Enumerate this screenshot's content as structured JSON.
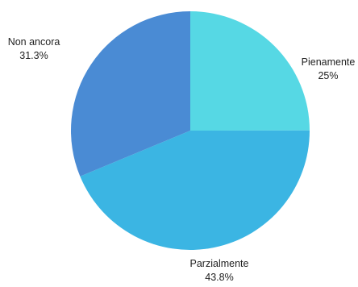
{
  "chart_data": {
    "type": "pie",
    "slices": [
      {
        "label": "Pienamente",
        "value": 25,
        "display": "25%",
        "color": "#56d8e4"
      },
      {
        "label": "Parzialmente",
        "value": 43.8,
        "display": "43.8%",
        "color": "#3bb5e3"
      },
      {
        "label": "Non ancora",
        "value": 31.3,
        "display": "31.3%",
        "color": "#4a8bd4"
      }
    ],
    "start": "12 o'clock",
    "direction": "clockwise",
    "legend": "none"
  }
}
